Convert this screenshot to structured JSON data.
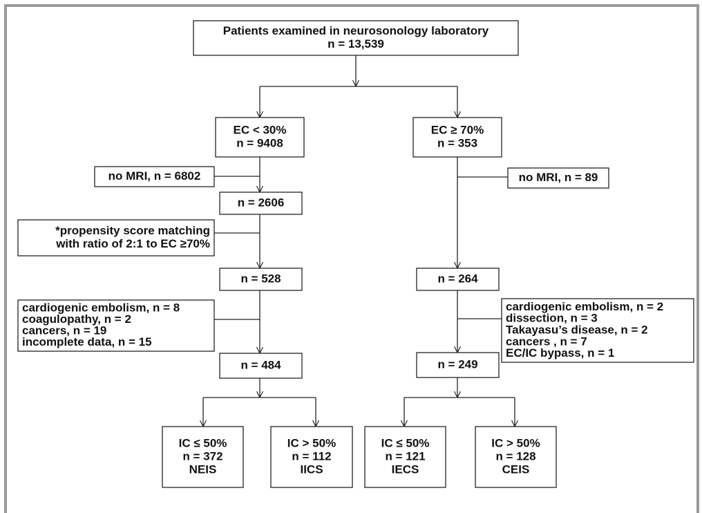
{
  "nodes": [
    {
      "lines": [
        "Patients examined in neurosonology laboratory",
        "n = 13,539"
      ]
    },
    {
      "lines": [
        "EC < 30%",
        "n = 9408"
      ]
    },
    {
      "lines": [
        "EC ≥ 70%",
        "n = 353"
      ]
    },
    {
      "lines": [
        "no MRI, n = 6802"
      ]
    },
    {
      "lines": [
        "no MRI, n = 89"
      ]
    },
    {
      "lines": [
        "n = 2606"
      ]
    },
    {
      "lines": [
        "*propensity score matching",
        "with ratio of 2:1 to EC ≥70%"
      ]
    },
    {
      "lines": [
        "n = 528"
      ]
    },
    {
      "lines": [
        "n = 264"
      ]
    },
    {
      "lines": [
        "cardiogenic embolism, n = 8",
        "coagulopathy, n = 2",
        "cancers, n = 19",
        "incomplete data, n = 15"
      ]
    },
    {
      "lines": [
        "cardiogenic embolism, n = 2",
        "dissection, n = 3",
        "Takayasu’s disease, n = 2",
        "cancers , n = 7",
        "EC/IC bypass, n = 1"
      ]
    },
    {
      "lines": [
        "n = 484"
      ]
    },
    {
      "lines": [
        "n = 249"
      ]
    },
    {
      "lines": [
        "IC ≤ 50%",
        "n = 372",
        "NEIS"
      ]
    },
    {
      "lines": [
        "IC > 50%",
        "n = 112",
        "IICS"
      ]
    },
    {
      "lines": [
        "IC ≤ 50%",
        "n = 121",
        "IECS"
      ]
    },
    {
      "lines": [
        "IC > 50%",
        "n = 128",
        "CEIS"
      ]
    }
  ]
}
